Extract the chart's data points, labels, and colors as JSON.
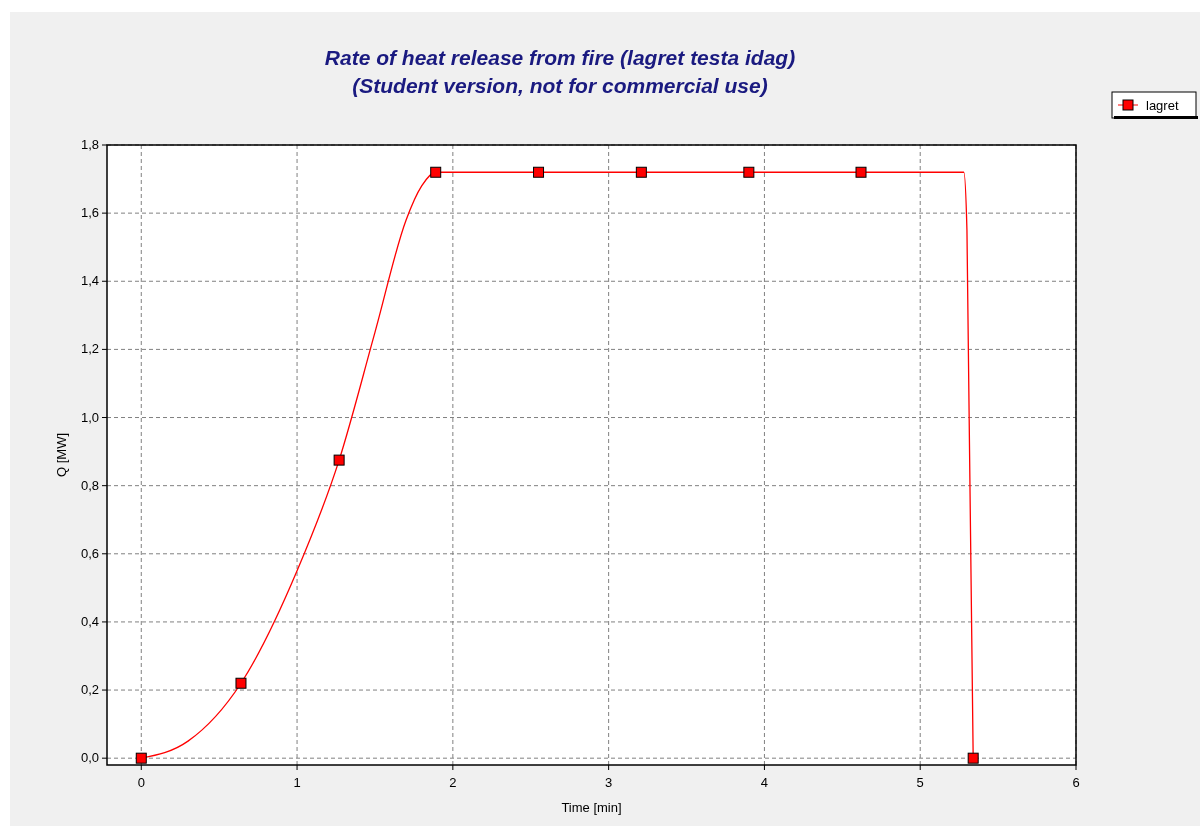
{
  "chart_data": {
    "type": "line",
    "title": "Rate of heat release from fire   (lagret testa idag)",
    "subtitle": "(Student version, not for commercial use)",
    "xlabel": "Time [min]",
    "ylabel": "Q [MW]",
    "xlim": [
      -0.22,
      6
    ],
    "xticks": [
      0,
      1,
      2,
      3,
      4,
      5,
      6
    ],
    "ylim": [
      -0.02,
      1.8
    ],
    "yticks": [
      {
        "value": 0,
        "label": "0,0"
      },
      {
        "value": 0.2,
        "label": "0,2"
      },
      {
        "value": 0.4,
        "label": "0,4"
      },
      {
        "value": 0.6,
        "label": "0,6"
      },
      {
        "value": 0.8,
        "label": "0,8"
      },
      {
        "value": 1.0,
        "label": "1,0"
      },
      {
        "value": 1.2,
        "label": "1,2"
      },
      {
        "value": 1.4,
        "label": "1,4"
      },
      {
        "value": 1.6,
        "label": "1,6"
      },
      {
        "value": 1.8,
        "label": "1,8"
      }
    ],
    "grid": true,
    "legend": "top right",
    "marker": "square",
    "line_style": "solid",
    "series": [
      {
        "color": "#ff0000",
        "marker": "none",
        "x": [
          0,
          0.3,
          0.64,
          1.0,
          1.27,
          1.5,
          1.7,
          1.8,
          1.89,
          5.28,
          5.3,
          5.34
        ],
        "values": [
          0,
          0.05,
          0.22,
          0.55,
          0.875,
          1.25,
          1.58,
          1.68,
          1.72,
          1.72,
          1.55,
          0
        ]
      },
      {
        "name": "lagret",
        "type": "scatter",
        "color": "#ff0000",
        "x": [
          0,
          0.64,
          1.27,
          1.89,
          2.55,
          3.21,
          3.9,
          4.62,
          5.34
        ],
        "values": [
          0,
          0.22,
          0.875,
          1.72,
          1.72,
          1.72,
          1.72,
          1.72,
          0
        ]
      }
    ]
  }
}
